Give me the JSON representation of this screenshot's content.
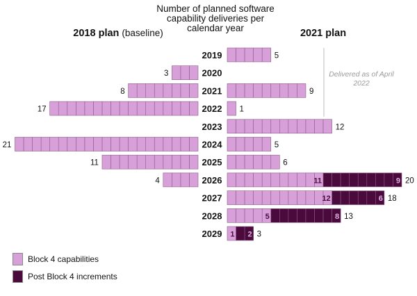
{
  "header": {
    "center_title": "Number of planned software capability deliveries per calendar year",
    "left_title": "2018 plan",
    "left_subtitle": "(baseline)",
    "right_title": "2021 plan",
    "note": "Delivered as of April 2022"
  },
  "legend": {
    "items": [
      {
        "label": "Block 4 capabilities",
        "color": "#d8a0d8"
      },
      {
        "label": "Post Block 4 increments",
        "color": "#4a0a3c"
      }
    ]
  },
  "chart_data": {
    "type": "bar",
    "title": "Number of planned software capability deliveries per calendar year",
    "categories": [
      "2019",
      "2020",
      "2021",
      "2022",
      "2023",
      "2024",
      "2025",
      "2026",
      "2027",
      "2028",
      "2029"
    ],
    "series": [
      {
        "name": "2018 plan (baseline)",
        "values": [
          0,
          3,
          8,
          17,
          0,
          21,
          11,
          4,
          0,
          0,
          0
        ]
      },
      {
        "name": "2021 plan - Block 4 capabilities",
        "values": [
          5,
          0,
          9,
          1,
          12,
          5,
          6,
          11,
          12,
          5,
          1
        ]
      },
      {
        "name": "2021 plan - Post Block 4 increments",
        "values": [
          0,
          0,
          0,
          0,
          0,
          0,
          0,
          9,
          6,
          8,
          2
        ]
      }
    ],
    "totals_2021": [
      5,
      0,
      9,
      1,
      12,
      5,
      6,
      20,
      18,
      13,
      3
    ],
    "segment_labels": {
      "2026": [
        "11",
        "9"
      ],
      "2027": [
        "12",
        "6"
      ],
      "2028": [
        "5",
        "8"
      ],
      "2029": [
        "1",
        "2"
      ]
    },
    "colors": {
      "block4": "#d8a0d8",
      "post": "#4a0a3c",
      "stroke": "#8c5a8c"
    }
  }
}
